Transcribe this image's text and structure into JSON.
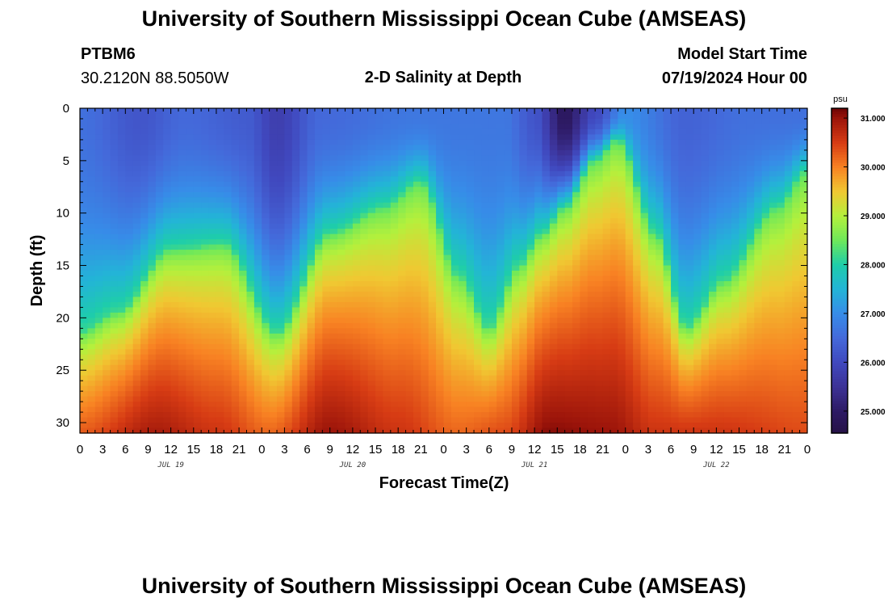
{
  "header": {
    "title": "University of Southern Mississippi Ocean Cube (AMSEAS)",
    "station": "PTBM6",
    "coords": "30.2120N  88.5050W",
    "chart_title": "2-D Salinity at Depth",
    "model_start_label": "Model Start Time",
    "model_start_value": "07/19/2024 Hour 00"
  },
  "footer": {
    "title": "University of Southern Mississippi Ocean Cube (AMSEAS)"
  },
  "chart_data": {
    "type": "heatmap",
    "title": "2-D Salinity at Depth",
    "xlabel": "Forecast Time(Z)",
    "ylabel": "Depth (ft)",
    "x_hours_range": [
      0,
      96
    ],
    "y_depth_range": [
      0,
      31
    ],
    "x_tick_labels": [
      "0",
      "3",
      "6",
      "9",
      "12",
      "15",
      "18",
      "21",
      "0",
      "3",
      "6",
      "9",
      "12",
      "15",
      "18",
      "21",
      "0",
      "3",
      "6",
      "9",
      "12",
      "15",
      "18",
      "21",
      "0",
      "3",
      "6",
      "9",
      "12",
      "15",
      "18",
      "21",
      "0"
    ],
    "day_labels": [
      "JUL 19",
      "JUL 20",
      "JUL 21",
      "JUL 22"
    ],
    "y_ticks": [
      0,
      5,
      10,
      15,
      20,
      25,
      30
    ],
    "y_tick_labels": [
      "0",
      "5",
      "10",
      "15",
      "20",
      "25",
      "30"
    ],
    "colorbar": {
      "unit": "psu",
      "range": [
        24.55,
        31.2
      ],
      "ticks": [
        25.0,
        26.0,
        27.0,
        28.0,
        29.0,
        30.0,
        31.0
      ],
      "tick_labels": [
        "25.000",
        "26.000",
        "27.000",
        "28.000",
        "29.000",
        "30.000",
        "31.000"
      ]
    },
    "interface_depth_by_hour": [
      {
        "hour": 0,
        "depth": 21.5
      },
      {
        "hour": 5,
        "depth": 19.5
      },
      {
        "hour": 12,
        "depth": 13.5
      },
      {
        "hour": 19,
        "depth": 13.0
      },
      {
        "hour": 26,
        "depth": 21.5
      },
      {
        "hour": 33,
        "depth": 12.0
      },
      {
        "hour": 40,
        "depth": 9.5
      },
      {
        "hour": 45,
        "depth": 7.0
      },
      {
        "hour": 50,
        "depth": 16.0
      },
      {
        "hour": 54,
        "depth": 21.0
      },
      {
        "hour": 58,
        "depth": 15.0
      },
      {
        "hour": 61,
        "depth": 12.0
      },
      {
        "hour": 64,
        "depth": 9.5
      },
      {
        "hour": 68,
        "depth": 5.0
      },
      {
        "hour": 71,
        "depth": 3.0
      },
      {
        "hour": 76,
        "depth": 12.0
      },
      {
        "hour": 80,
        "depth": 21.0
      },
      {
        "hour": 85,
        "depth": 16.5
      },
      {
        "hour": 92,
        "depth": 9.5
      },
      {
        "hour": 96,
        "depth": 6.0
      }
    ],
    "surface_salinity_by_hour": [
      {
        "hour": 0,
        "value": 26.6
      },
      {
        "hour": 8,
        "value": 26.2
      },
      {
        "hour": 14,
        "value": 26.5
      },
      {
        "hour": 22,
        "value": 26.3
      },
      {
        "hour": 26,
        "value": 25.8
      },
      {
        "hour": 32,
        "value": 26.5
      },
      {
        "hour": 44,
        "value": 26.7
      },
      {
        "hour": 56,
        "value": 26.7
      },
      {
        "hour": 60,
        "value": 26.2
      },
      {
        "hour": 64,
        "value": 24.9
      },
      {
        "hour": 68,
        "value": 26.0
      },
      {
        "hour": 72,
        "value": 27.0
      },
      {
        "hour": 80,
        "value": 26.4
      },
      {
        "hour": 88,
        "value": 26.6
      },
      {
        "hour": 96,
        "value": 26.6
      }
    ],
    "bottom_salinity_by_hour": [
      {
        "hour": 0,
        "value": 30.3
      },
      {
        "hour": 10,
        "value": 30.9
      },
      {
        "hour": 18,
        "value": 30.6
      },
      {
        "hour": 25,
        "value": 30.2
      },
      {
        "hour": 33,
        "value": 31.0
      },
      {
        "hour": 42,
        "value": 30.6
      },
      {
        "hour": 50,
        "value": 30.2
      },
      {
        "hour": 56,
        "value": 30.4
      },
      {
        "hour": 62,
        "value": 31.1
      },
      {
        "hour": 70,
        "value": 31.0
      },
      {
        "hour": 76,
        "value": 30.6
      },
      {
        "hour": 84,
        "value": 30.6
      },
      {
        "hour": 96,
        "value": 30.4
      }
    ]
  }
}
